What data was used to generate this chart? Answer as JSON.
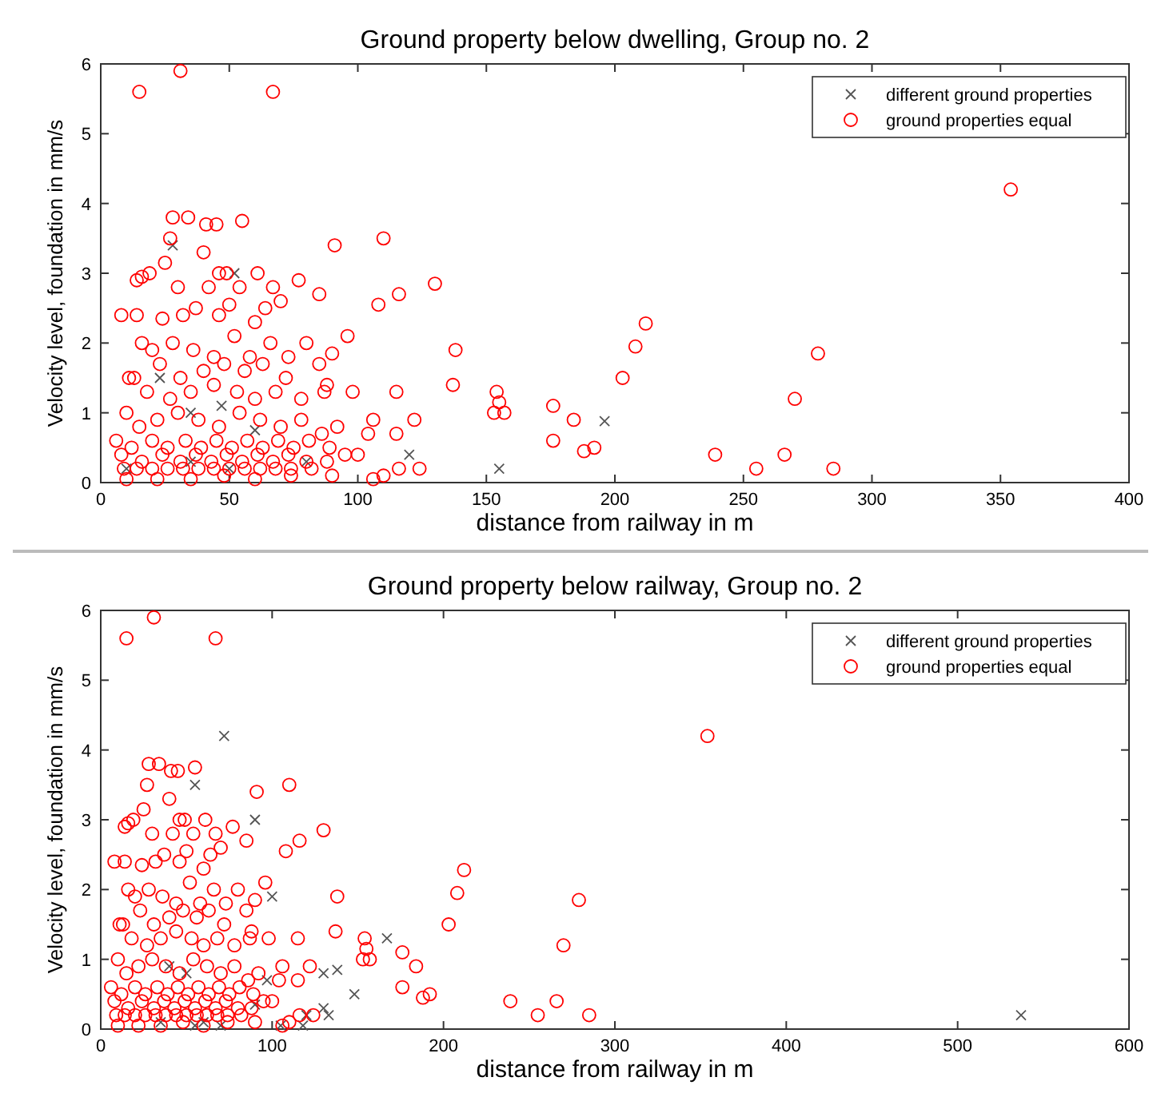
{
  "chart_data": [
    {
      "type": "scatter",
      "title": "Ground property below dwelling, Group no. 2",
      "xlabel": "distance from railway  in  m",
      "ylabel": "Velocity level, foundation in mm/s",
      "xlim": [
        0,
        400
      ],
      "xticks": [
        0,
        50,
        100,
        150,
        200,
        250,
        300,
        350,
        400
      ],
      "ylim": [
        0,
        6
      ],
      "yticks": [
        0,
        1,
        2,
        3,
        4,
        5,
        6
      ],
      "grid": false,
      "legend": "top right",
      "series": [
        {
          "name": "different ground properties",
          "color": "#555555",
          "marker": "cross",
          "x": [
            28,
            52,
            47,
            35,
            23,
            60,
            120,
            155,
            196,
            10,
            80,
            35,
            50
          ],
          "values": [
            3.4,
            3.0,
            1.1,
            1.0,
            1.5,
            0.75,
            0.4,
            0.2,
            0.88,
            0.2,
            0.3,
            0.3,
            0.2
          ]
        },
        {
          "name": "ground properties equal",
          "color": "#ff0000",
          "marker": "circle",
          "x": [
            15,
            31,
            67,
            354,
            28,
            34,
            41,
            45,
            55,
            27,
            91,
            110,
            40,
            25,
            14,
            16,
            19,
            30,
            46,
            49,
            61,
            77,
            130,
            42,
            54,
            67,
            85,
            108,
            116,
            8,
            14,
            32,
            37,
            46,
            50,
            64,
            70,
            24,
            60,
            96,
            212,
            208,
            203,
            138,
            137,
            154,
            153,
            157,
            155,
            115,
            98,
            176,
            184,
            176,
            188,
            192,
            239,
            255,
            266,
            270,
            279,
            285,
            16,
            20,
            28,
            36,
            44,
            52,
            58,
            66,
            73,
            80,
            90,
            23,
            31,
            40,
            48,
            56,
            63,
            72,
            85,
            88,
            11,
            13,
            18,
            27,
            35,
            44,
            53,
            60,
            68,
            78,
            87,
            106,
            122,
            104,
            115,
            10,
            15,
            22,
            30,
            38,
            46,
            54,
            62,
            70,
            78,
            86,
            92,
            6,
            12,
            20,
            26,
            33,
            39,
            45,
            51,
            57,
            63,
            69,
            75,
            81,
            89,
            95,
            8,
            16,
            24,
            31,
            37,
            43,
            49,
            55,
            61,
            67,
            73,
            80,
            88,
            100,
            9,
            14,
            20,
            26,
            32,
            38,
            44,
            50,
            56,
            62,
            68,
            74,
            82,
            90,
            106,
            110,
            116,
            124,
            10,
            22,
            35,
            48,
            60,
            74
          ],
          "values": [
            5.6,
            5.9,
            5.6,
            4.2,
            3.8,
            3.8,
            3.7,
            3.7,
            3.75,
            3.5,
            3.4,
            3.5,
            3.3,
            3.15,
            2.9,
            2.95,
            3.0,
            2.8,
            3.0,
            3.0,
            3.0,
            2.9,
            2.85,
            2.8,
            2.8,
            2.8,
            2.7,
            2.55,
            2.7,
            2.4,
            2.4,
            2.4,
            2.5,
            2.4,
            2.55,
            2.5,
            2.6,
            2.35,
            2.3,
            2.1,
            2.28,
            1.95,
            1.5,
            1.9,
            1.4,
            1.3,
            1.0,
            1.0,
            1.15,
            1.3,
            1.3,
            1.1,
            0.9,
            0.6,
            0.45,
            0.5,
            0.4,
            0.2,
            0.4,
            1.2,
            1.85,
            0.2,
            2.0,
            1.9,
            2.0,
            1.9,
            1.8,
            2.1,
            1.8,
            2.0,
            1.8,
            2.0,
            1.85,
            1.7,
            1.5,
            1.6,
            1.7,
            1.6,
            1.7,
            1.5,
            1.7,
            1.4,
            1.5,
            1.5,
            1.3,
            1.2,
            1.3,
            1.4,
            1.3,
            1.2,
            1.3,
            1.2,
            1.3,
            0.9,
            0.9,
            0.7,
            0.7,
            1.0,
            0.8,
            0.9,
            1.0,
            0.9,
            0.8,
            1.0,
            0.9,
            0.8,
            0.9,
            0.7,
            0.8,
            0.6,
            0.5,
            0.6,
            0.5,
            0.6,
            0.5,
            0.6,
            0.5,
            0.6,
            0.5,
            0.6,
            0.5,
            0.6,
            0.5,
            0.4,
            0.4,
            0.3,
            0.4,
            0.3,
            0.4,
            0.3,
            0.4,
            0.3,
            0.4,
            0.3,
            0.4,
            0.3,
            0.3,
            0.4,
            0.2,
            0.2,
            0.2,
            0.2,
            0.2,
            0.2,
            0.2,
            0.2,
            0.2,
            0.2,
            0.2,
            0.2,
            0.2,
            0.1,
            0.05,
            0.1,
            0.2,
            0.2,
            0.05,
            0.05,
            0.05,
            0.1,
            0.05,
            0.1
          ]
        }
      ]
    },
    {
      "type": "scatter",
      "title": "Ground property below railway, Group no. 2",
      "xlabel": "distance from railway  in  m",
      "ylabel": "Velocity level, foundation in mm/s",
      "xlim": [
        0,
        600
      ],
      "xticks": [
        0,
        100,
        200,
        300,
        400,
        500,
        600
      ],
      "ylim": [
        0,
        6
      ],
      "yticks": [
        0,
        1,
        2,
        3,
        4,
        5,
        6
      ],
      "grid": false,
      "legend": "top right",
      "series": [
        {
          "name": "different ground properties",
          "color": "#555555",
          "marker": "cross",
          "x": [
            72,
            55,
            90,
            100,
            167,
            148,
            130,
            138,
            130,
            133,
            120,
            118,
            105,
            97,
            40,
            50,
            60,
            70,
            35,
            55,
            537,
            90
          ],
          "values": [
            4.2,
            3.5,
            3.0,
            1.9,
            1.3,
            0.5,
            0.8,
            0.85,
            0.3,
            0.2,
            0.2,
            0.05,
            0.05,
            0.7,
            0.9,
            0.8,
            0.1,
            0.05,
            0.1,
            0.05,
            0.2,
            0.35
          ]
        },
        {
          "name": "ground properties equal",
          "color": "#ff0000",
          "marker": "circle",
          "x": [
            15,
            31,
            67,
            354,
            28,
            34,
            41,
            45,
            55,
            27,
            91,
            110,
            40,
            25,
            14,
            16,
            19,
            30,
            46,
            49,
            61,
            77,
            130,
            42,
            54,
            67,
            85,
            108,
            116,
            8,
            14,
            32,
            37,
            46,
            50,
            64,
            70,
            24,
            60,
            96,
            212,
            208,
            203,
            138,
            137,
            154,
            153,
            157,
            155,
            115,
            98,
            176,
            184,
            176,
            188,
            192,
            239,
            255,
            266,
            270,
            279,
            285,
            16,
            20,
            28,
            36,
            44,
            52,
            58,
            66,
            73,
            80,
            90,
            23,
            31,
            40,
            48,
            56,
            63,
            72,
            85,
            88,
            11,
            13,
            18,
            27,
            35,
            44,
            53,
            60,
            68,
            78,
            87,
            106,
            122,
            104,
            115,
            10,
            15,
            22,
            30,
            38,
            46,
            54,
            62,
            70,
            78,
            86,
            92,
            6,
            12,
            20,
            26,
            33,
            39,
            45,
            51,
            57,
            63,
            69,
            75,
            81,
            89,
            95,
            8,
            16,
            24,
            31,
            37,
            43,
            49,
            55,
            61,
            67,
            73,
            80,
            88,
            100,
            9,
            14,
            20,
            26,
            32,
            38,
            44,
            50,
            56,
            62,
            68,
            74,
            82,
            90,
            106,
            110,
            116,
            124,
            10,
            22,
            35,
            48,
            60,
            74
          ],
          "values": [
            5.6,
            5.9,
            5.6,
            4.2,
            3.8,
            3.8,
            3.7,
            3.7,
            3.75,
            3.5,
            3.4,
            3.5,
            3.3,
            3.15,
            2.9,
            2.95,
            3.0,
            2.8,
            3.0,
            3.0,
            3.0,
            2.9,
            2.85,
            2.8,
            2.8,
            2.8,
            2.7,
            2.55,
            2.7,
            2.4,
            2.4,
            2.4,
            2.5,
            2.4,
            2.55,
            2.5,
            2.6,
            2.35,
            2.3,
            2.1,
            2.28,
            1.95,
            1.5,
            1.9,
            1.4,
            1.3,
            1.0,
            1.0,
            1.15,
            1.3,
            1.3,
            1.1,
            0.9,
            0.6,
            0.45,
            0.5,
            0.4,
            0.2,
            0.4,
            1.2,
            1.85,
            0.2,
            2.0,
            1.9,
            2.0,
            1.9,
            1.8,
            2.1,
            1.8,
            2.0,
            1.8,
            2.0,
            1.85,
            1.7,
            1.5,
            1.6,
            1.7,
            1.6,
            1.7,
            1.5,
            1.7,
            1.4,
            1.5,
            1.5,
            1.3,
            1.2,
            1.3,
            1.4,
            1.3,
            1.2,
            1.3,
            1.2,
            1.3,
            0.9,
            0.9,
            0.7,
            0.7,
            1.0,
            0.8,
            0.9,
            1.0,
            0.9,
            0.8,
            1.0,
            0.9,
            0.8,
            0.9,
            0.7,
            0.8,
            0.6,
            0.5,
            0.6,
            0.5,
            0.6,
            0.5,
            0.6,
            0.5,
            0.6,
            0.5,
            0.6,
            0.5,
            0.6,
            0.5,
            0.4,
            0.4,
            0.3,
            0.4,
            0.3,
            0.4,
            0.3,
            0.4,
            0.3,
            0.4,
            0.3,
            0.4,
            0.3,
            0.3,
            0.4,
            0.2,
            0.2,
            0.2,
            0.2,
            0.2,
            0.2,
            0.2,
            0.2,
            0.2,
            0.2,
            0.2,
            0.2,
            0.2,
            0.1,
            0.05,
            0.1,
            0.2,
            0.2,
            0.05,
            0.05,
            0.05,
            0.1,
            0.05,
            0.1
          ]
        }
      ]
    }
  ]
}
